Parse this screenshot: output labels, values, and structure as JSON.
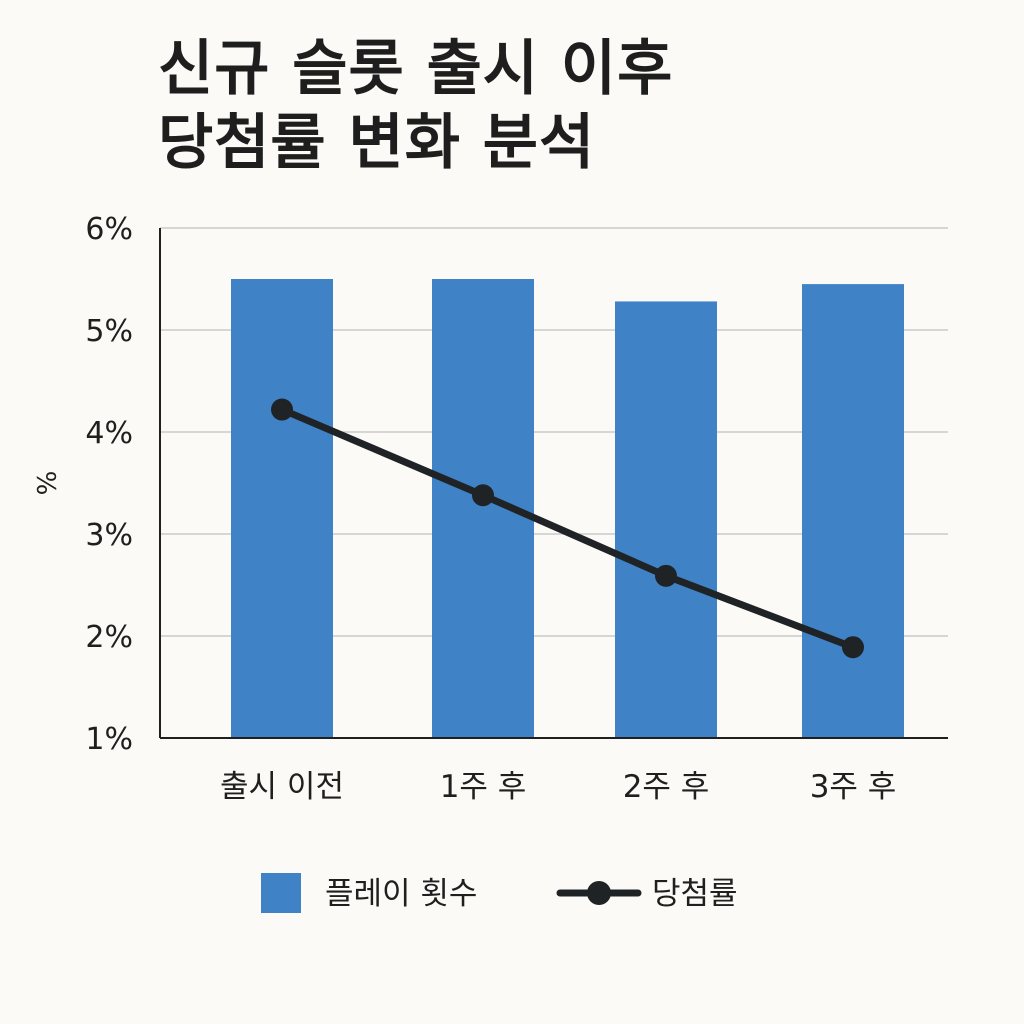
{
  "title": {
    "line1": "신규 슬롯 출시 이후",
    "line2": "당첨률 변화 분석"
  },
  "chart_data": {
    "type": "bar",
    "title": "신규 슬롯 출시 이후 당첨률 변화 분석",
    "categories": [
      "출시 이전",
      "1주 후",
      "2주 후",
      "3주 후"
    ],
    "ylabel": "%",
    "xlabel": "",
    "ylim": [
      1,
      6
    ],
    "yticks": [
      1,
      2,
      3,
      4,
      5,
      6
    ],
    "ytick_labels": [
      "1%",
      "2%",
      "3%",
      "4%",
      "5%",
      "6%"
    ],
    "grid": true,
    "legend_position": "bottom",
    "series": [
      {
        "name": "플레이 횟수",
        "type": "bar",
        "color": "#3f82c6",
        "values": [
          5.5,
          5.5,
          5.28,
          5.45
        ]
      },
      {
        "name": "당첨률",
        "type": "line",
        "color": "#1f2326",
        "values": [
          4.22,
          3.38,
          2.59,
          1.89
        ]
      }
    ]
  }
}
